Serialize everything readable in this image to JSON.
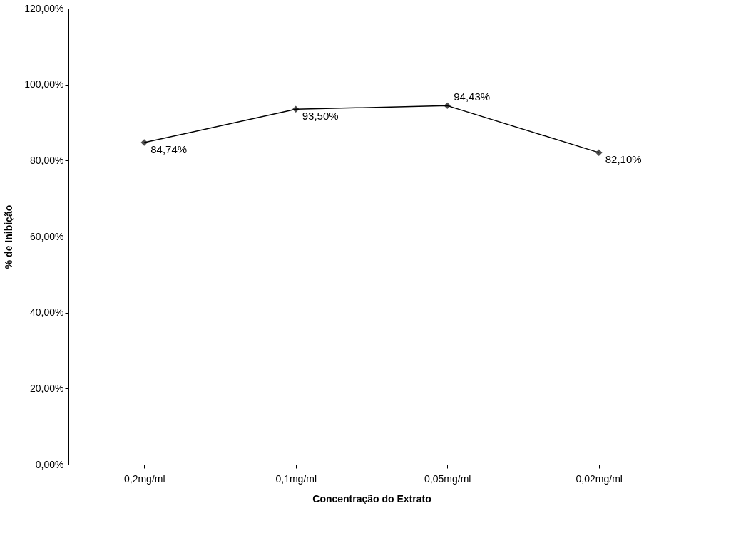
{
  "chart_data": {
    "type": "line",
    "xlabel": "Concentração do Extrato",
    "ylabel": "% de Inibição",
    "categories": [
      "0,2mg/ml",
      "0,1mg/ml",
      "0,05mg/ml",
      "0,02mg/ml"
    ],
    "series": [
      {
        "color": "#000000",
        "values": [
          84.74,
          93.5,
          94.43,
          82.1
        ],
        "value_labels": [
          "84,74%",
          "93,50%",
          "94,43%",
          "82,10%"
        ]
      }
    ],
    "ylim": [
      0,
      120
    ],
    "yticks": [
      {
        "value": 0,
        "label": "0,00%"
      },
      {
        "value": 20,
        "label": "20,00%"
      },
      {
        "value": 40,
        "label": "40,00%"
      },
      {
        "value": 60,
        "label": "60,00%"
      },
      {
        "value": 80,
        "label": "80,00%"
      },
      {
        "value": 100,
        "label": "100,00%"
      },
      {
        "value": 120,
        "label": "120,00%"
      }
    ],
    "grid": false,
    "marker": "diamond",
    "line_style": "solid"
  }
}
